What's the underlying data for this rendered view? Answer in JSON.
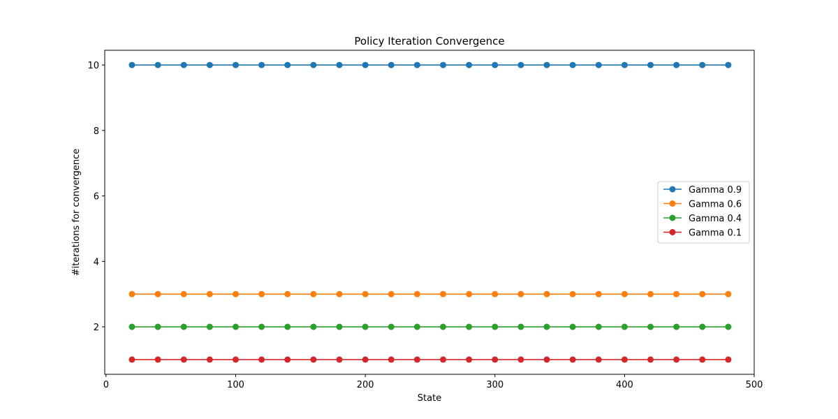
{
  "chart_data": {
    "type": "line",
    "title": "Policy Iteration Convergence",
    "xlabel": "State",
    "ylabel": "#iterations for convergence",
    "x": [
      20,
      40,
      60,
      80,
      100,
      120,
      140,
      160,
      180,
      200,
      220,
      240,
      260,
      280,
      300,
      320,
      340,
      360,
      380,
      400,
      420,
      440,
      460,
      480
    ],
    "xlim": [
      -1,
      500
    ],
    "ylim": [
      0.55,
      10.45
    ],
    "xticks": [
      0,
      100,
      200,
      300,
      400,
      500
    ],
    "yticks": [
      2,
      4,
      6,
      8,
      10
    ],
    "grid": false,
    "legend_position": "center-right",
    "series": [
      {
        "name": "Gamma 0.9",
        "color": "#1f77b4",
        "values": [
          10,
          10,
          10,
          10,
          10,
          10,
          10,
          10,
          10,
          10,
          10,
          10,
          10,
          10,
          10,
          10,
          10,
          10,
          10,
          10,
          10,
          10,
          10,
          10
        ]
      },
      {
        "name": "Gamma 0.6",
        "color": "#ff7f0e",
        "values": [
          3,
          3,
          3,
          3,
          3,
          3,
          3,
          3,
          3,
          3,
          3,
          3,
          3,
          3,
          3,
          3,
          3,
          3,
          3,
          3,
          3,
          3,
          3,
          3
        ]
      },
      {
        "name": "Gamma 0.4",
        "color": "#2ca02c",
        "values": [
          2,
          2,
          2,
          2,
          2,
          2,
          2,
          2,
          2,
          2,
          2,
          2,
          2,
          2,
          2,
          2,
          2,
          2,
          2,
          2,
          2,
          2,
          2,
          2
        ]
      },
      {
        "name": "Gamma 0.1",
        "color": "#d62728",
        "values": [
          1,
          1,
          1,
          1,
          1,
          1,
          1,
          1,
          1,
          1,
          1,
          1,
          1,
          1,
          1,
          1,
          1,
          1,
          1,
          1,
          1,
          1,
          1,
          1
        ]
      }
    ]
  }
}
